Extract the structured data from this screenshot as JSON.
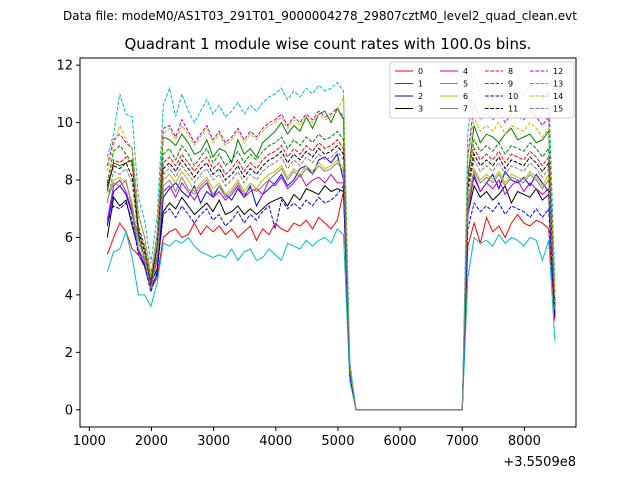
{
  "suptitle": "Data file: modeM0/AS1T03_291T01_9000004278_29807cztM0_level2_quad_clean.evt",
  "chart_data": {
    "type": "line",
    "title": "Quadrant 1 module wise count rates with 100.0s bins.",
    "xlabel": "",
    "ylabel": "",
    "x_offset_label": "+3.5509e8",
    "xlim": [
      850,
      8830
    ],
    "ylim": [
      -0.6,
      12.25
    ],
    "grid": false,
    "legend": {
      "placement": "top-right",
      "columns": 4
    },
    "x_ticks": [
      1000,
      2000,
      3000,
      4000,
      5000,
      6000,
      7000,
      8000
    ],
    "x_tick_labels": [
      "1000",
      "2000",
      "3000",
      "4000",
      "5000",
      "6000",
      "7000",
      "8000"
    ],
    "y_ticks": [
      0,
      2,
      4,
      6,
      8,
      10,
      12
    ],
    "y_tick_labels": [
      "0",
      "2",
      "4",
      "6",
      "8",
      "10",
      "12"
    ],
    "x": [
      1290,
      1390,
      1490,
      1590,
      1690,
      1790,
      1890,
      1990,
      2090,
      2190,
      2290,
      2390,
      2490,
      2590,
      2690,
      2790,
      2890,
      2990,
      3090,
      3190,
      3290,
      3390,
      3490,
      3590,
      3690,
      3790,
      3890,
      3990,
      4090,
      4190,
      4290,
      4390,
      4490,
      4590,
      4690,
      4790,
      4890,
      4990,
      5090,
      5190,
      5290,
      7000,
      7090,
      7190,
      7290,
      7390,
      7490,
      7590,
      7690,
      7790,
      7890,
      7990,
      8090,
      8190,
      8290,
      8390,
      8490
    ],
    "series": [
      {
        "name": "0",
        "color": "#ff0000",
        "dash": "solid",
        "values": [
          5.4,
          6.0,
          6.5,
          6.2,
          5.6,
          5.4,
          5.0,
          4.2,
          4.6,
          6.0,
          6.2,
          6.3,
          6.0,
          6.1,
          6.5,
          6.1,
          6.4,
          6.2,
          6.4,
          6.1,
          6.3,
          6.0,
          6.2,
          6.4,
          5.9,
          6.3,
          6.1,
          6.5,
          6.3,
          6.2,
          6.5,
          6.4,
          6.6,
          6.3,
          6.7,
          6.5,
          6.3,
          6.6,
          7.6,
          1.2,
          0,
          0,
          5.7,
          6.5,
          5.8,
          6.7,
          6.2,
          6.4,
          6.0,
          6.5,
          6.8,
          6.5,
          6.4,
          6.6,
          6.5,
          6.3,
          3.1
        ]
      },
      {
        "name": "1",
        "color": "#008000",
        "dash": "solid",
        "values": [
          7.6,
          8.6,
          8.5,
          8.6,
          8.7,
          6.0,
          5.3,
          4.5,
          5.7,
          9.5,
          9.4,
          9.2,
          9.6,
          9.3,
          8.9,
          9.0,
          9.4,
          8.8,
          9.1,
          9.0,
          8.6,
          9.4,
          8.9,
          9.1,
          8.8,
          9.3,
          9.5,
          9.7,
          10.0,
          9.6,
          9.9,
          9.7,
          10.2,
          9.8,
          10.3,
          10.4,
          10.0,
          10.5,
          10.1,
          1.4,
          0,
          0,
          8.1,
          9.9,
          9.3,
          9.6,
          9.5,
          9.3,
          9.6,
          9.8,
          9.4,
          9.5,
          9.6,
          9.3,
          9.4,
          9.7,
          3.6
        ]
      },
      {
        "name": "2",
        "color": "#0000ff",
        "dash": "solid",
        "values": [
          6.4,
          7.6,
          7.8,
          7.5,
          6.8,
          6.1,
          5.2,
          4.3,
          4.7,
          7.4,
          7.7,
          7.9,
          7.6,
          7.4,
          7.8,
          7.2,
          7.6,
          7.4,
          7.8,
          7.5,
          7.3,
          7.7,
          7.4,
          7.8,
          7.1,
          7.5,
          7.7,
          7.9,
          8.2,
          7.8,
          8.0,
          8.4,
          8.5,
          8.2,
          8.7,
          8.8,
          8.6,
          8.9,
          8.0,
          1.3,
          0,
          0,
          7.2,
          8.1,
          7.6,
          7.9,
          8.2,
          7.7,
          8.3,
          8.0,
          7.9,
          8.1,
          7.8,
          8.2,
          7.9,
          7.6,
          3.4
        ]
      },
      {
        "name": "3",
        "color": "#000000",
        "dash": "solid",
        "values": [
          6.0,
          7.4,
          7.1,
          7.3,
          6.4,
          5.6,
          5.0,
          4.4,
          4.9,
          6.9,
          7.2,
          7.0,
          7.4,
          7.1,
          6.8,
          7.0,
          7.2,
          6.9,
          7.3,
          6.8,
          6.9,
          7.1,
          6.8,
          7.0,
          6.8,
          7.0,
          7.2,
          7.3,
          7.4,
          7.1,
          7.5,
          7.3,
          7.7,
          7.6,
          7.5,
          7.8,
          7.6,
          7.7,
          7.6,
          1.3,
          0,
          0,
          6.8,
          7.8,
          7.4,
          7.6,
          7.3,
          7.5,
          7.8,
          7.2,
          7.6,
          7.5,
          7.4,
          7.7,
          7.3,
          7.5,
          3.3
        ]
      },
      {
        "name": "4",
        "color": "#bf00bf",
        "dash": "solid",
        "values": [
          6.6,
          7.8,
          8.0,
          7.6,
          6.9,
          5.5,
          5.1,
          4.3,
          5.3,
          7.6,
          7.8,
          7.4,
          7.9,
          7.6,
          7.3,
          7.7,
          7.9,
          7.4,
          7.6,
          7.3,
          7.5,
          7.8,
          7.4,
          7.6,
          7.7,
          7.5,
          8.0,
          7.8,
          8.1,
          7.7,
          7.9,
          8.2,
          7.8,
          8.0,
          8.1,
          7.9,
          8.2,
          7.9,
          7.9,
          1.3,
          0,
          0,
          6.8,
          8.2,
          7.6,
          7.9,
          7.7,
          8.0,
          7.5,
          7.8,
          8.0,
          7.6,
          7.9,
          7.7,
          7.5,
          7.7,
          3.4
        ]
      },
      {
        "name": "5",
        "color": "#00bfbf",
        "dash": "solid",
        "values": [
          4.8,
          5.5,
          5.6,
          6.2,
          5.3,
          4.0,
          4.0,
          3.6,
          4.4,
          5.8,
          5.7,
          5.9,
          5.8,
          6.0,
          5.7,
          5.5,
          5.4,
          5.3,
          5.4,
          5.3,
          5.6,
          5.2,
          5.5,
          5.6,
          5.2,
          5.3,
          5.6,
          5.4,
          5.2,
          5.8,
          5.7,
          5.6,
          5.9,
          5.7,
          5.9,
          6.0,
          5.8,
          6.3,
          6.1,
          1.0,
          0,
          0,
          4.6,
          6.0,
          5.8,
          5.9,
          5.7,
          6.1,
          5.8,
          6.0,
          5.9,
          5.7,
          6.0,
          5.9,
          5.2,
          5.9,
          2.4
        ]
      },
      {
        "name": "6",
        "color": "#bfbf00",
        "dash": "solid",
        "values": [
          7.5,
          8.0,
          8.1,
          7.9,
          7.2,
          5.8,
          5.3,
          4.4,
          5.5,
          8.0,
          8.2,
          7.9,
          8.3,
          8.0,
          7.6,
          7.9,
          8.1,
          7.7,
          7.9,
          7.5,
          7.7,
          8.0,
          7.6,
          7.9,
          7.7,
          8.0,
          8.2,
          8.3,
          8.5,
          8.1,
          8.4,
          8.2,
          8.5,
          8.3,
          8.6,
          8.4,
          8.5,
          8.7,
          8.4,
          1.4,
          0,
          0,
          7.3,
          8.4,
          8.0,
          8.2,
          8.0,
          8.3,
          7.9,
          8.2,
          8.1,
          8.0,
          8.3,
          8.1,
          7.8,
          8.2,
          3.5
        ]
      },
      {
        "name": "7",
        "color": "#808080",
        "dash": "solid",
        "values": [
          7.3,
          7.9,
          7.8,
          8.0,
          7.0,
          5.6,
          5.2,
          4.2,
          5.2,
          7.8,
          8.0,
          7.6,
          8.1,
          7.7,
          7.5,
          7.8,
          8.0,
          7.5,
          7.8,
          7.4,
          7.6,
          7.9,
          7.5,
          7.7,
          7.6,
          7.8,
          8.0,
          8.2,
          8.4,
          8.0,
          8.3,
          8.1,
          8.4,
          8.2,
          8.5,
          8.3,
          8.4,
          8.6,
          8.3,
          1.3,
          0,
          0,
          7.1,
          8.3,
          7.9,
          8.1,
          7.9,
          8.2,
          7.8,
          8.1,
          8.0,
          7.9,
          8.2,
          8.0,
          7.7,
          8.0,
          3.4
        ]
      },
      {
        "name": "8",
        "color": "#ff0000",
        "dash": "dashed",
        "values": [
          7.7,
          8.7,
          8.6,
          8.8,
          8.5,
          6.3,
          5.6,
          4.4,
          5.7,
          8.6,
          8.8,
          8.5,
          8.9,
          8.6,
          8.3,
          8.6,
          8.8,
          8.4,
          8.6,
          8.2,
          8.4,
          8.7,
          8.3,
          8.6,
          8.4,
          8.7,
          8.9,
          9.0,
          9.2,
          8.8,
          9.1,
          8.9,
          9.2,
          9.0,
          9.3,
          9.1,
          9.2,
          9.4,
          9.1,
          1.4,
          0,
          0,
          7.9,
          9.1,
          8.7,
          8.9,
          8.7,
          9.0,
          8.6,
          8.9,
          8.8,
          8.7,
          9.0,
          8.8,
          8.5,
          8.8,
          3.7
        ]
      },
      {
        "name": "9",
        "color": "#008000",
        "dash": "dashed",
        "values": [
          7.9,
          9.0,
          9.2,
          8.9,
          8.6,
          6.4,
          5.7,
          4.5,
          5.8,
          8.9,
          9.1,
          8.7,
          9.2,
          8.9,
          8.5,
          8.8,
          9.1,
          8.6,
          8.9,
          8.5,
          8.7,
          9.0,
          8.6,
          8.9,
          8.7,
          9.0,
          9.2,
          9.3,
          9.5,
          9.1,
          9.4,
          9.2,
          9.5,
          9.3,
          9.6,
          9.4,
          9.5,
          9.7,
          9.4,
          1.5,
          0,
          0,
          8.1,
          9.4,
          9.0,
          9.2,
          9.0,
          9.3,
          8.9,
          9.2,
          9.1,
          9.0,
          9.3,
          9.1,
          8.8,
          9.1,
          3.8
        ]
      },
      {
        "name": "10",
        "color": "#0000ff",
        "dash": "dashed",
        "values": [
          6.5,
          7.1,
          7.0,
          7.2,
          6.6,
          5.4,
          5.0,
          4.1,
          4.8,
          6.8,
          7.0,
          6.7,
          7.1,
          6.8,
          6.5,
          6.8,
          7.0,
          6.6,
          6.8,
          6.4,
          6.6,
          6.9,
          6.5,
          6.8,
          6.6,
          6.9,
          7.1,
          6.3,
          7.3,
          7.0,
          7.2,
          7.0,
          7.3,
          7.1,
          7.4,
          7.2,
          7.3,
          7.5,
          7.8,
          1.2,
          0,
          0,
          6.3,
          7.2,
          6.9,
          7.1,
          6.9,
          7.2,
          6.8,
          7.1,
          7.0,
          6.9,
          6.7,
          7.0,
          6.7,
          7.0,
          3.2
        ]
      },
      {
        "name": "11",
        "color": "#000000",
        "dash": "dashed",
        "values": [
          7.8,
          8.5,
          8.4,
          8.6,
          8.1,
          6.2,
          5.5,
          4.3,
          5.6,
          8.4,
          8.6,
          8.3,
          8.7,
          8.4,
          8.1,
          8.4,
          8.6,
          8.2,
          8.4,
          8.0,
          8.2,
          8.5,
          8.1,
          8.4,
          8.2,
          8.5,
          8.7,
          8.8,
          9.0,
          8.6,
          8.9,
          8.7,
          9.0,
          8.8,
          9.1,
          8.9,
          9.0,
          9.2,
          8.9,
          1.4,
          0,
          0,
          7.7,
          8.9,
          8.5,
          8.7,
          8.5,
          8.8,
          8.4,
          8.7,
          8.6,
          8.5,
          8.8,
          8.6,
          8.3,
          8.6,
          3.6
        ]
      },
      {
        "name": "12",
        "color": "#bf00bf",
        "dash": "dashed",
        "values": [
          8.5,
          9.4,
          9.6,
          9.3,
          9.1,
          6.8,
          6.0,
          4.7,
          6.1,
          9.8,
          9.9,
          9.5,
          10.1,
          9.7,
          9.3,
          9.6,
          9.9,
          9.4,
          9.7,
          9.3,
          9.5,
          9.8,
          9.4,
          9.7,
          9.5,
          9.8,
          10.0,
          10.1,
          10.3,
          9.9,
          10.2,
          10.0,
          10.3,
          10.1,
          10.4,
          10.2,
          10.3,
          10.5,
          10.2,
          1.6,
          0,
          0,
          8.8,
          10.7,
          10.1,
          10.3,
          10.1,
          10.4,
          10.0,
          10.3,
          10.2,
          10.1,
          10.4,
          10.2,
          9.9,
          10.2,
          4.1
        ]
      },
      {
        "name": "13",
        "color": "#00bfbf",
        "dash": "dashed",
        "values": [
          8.8,
          9.6,
          11.0,
          10.3,
          10.2,
          7.4,
          6.6,
          5.1,
          6.7,
          10.6,
          11.2,
          10.2,
          11.0,
          10.4,
          10.0,
          10.4,
          10.8,
          10.3,
          10.6,
          10.2,
          10.4,
          10.7,
          10.3,
          10.6,
          10.4,
          10.7,
          10.9,
          11.0,
          11.2,
          10.8,
          11.1,
          10.9,
          11.2,
          11.0,
          11.3,
          11.1,
          11.2,
          11.4,
          11.1,
          1.7,
          0,
          0,
          9.6,
          11.7,
          11.0,
          11.2,
          11.0,
          11.3,
          10.9,
          11.2,
          11.1,
          11.0,
          11.3,
          11.1,
          10.8,
          11.1,
          4.4
        ]
      },
      {
        "name": "14",
        "color": "#bfbf00",
        "dash": "dashed",
        "values": [
          8.3,
          9.2,
          9.9,
          9.4,
          9.1,
          6.8,
          6.0,
          4.7,
          6.1,
          9.6,
          9.8,
          9.4,
          9.9,
          9.6,
          9.2,
          9.5,
          9.8,
          9.3,
          9.6,
          9.2,
          9.4,
          9.7,
          9.3,
          9.6,
          9.4,
          9.7,
          9.9,
          10.0,
          10.2,
          9.8,
          10.1,
          9.9,
          10.2,
          10.0,
          10.3,
          10.1,
          10.2,
          10.4,
          10.9,
          1.6,
          0,
          0,
          8.7,
          10.2,
          9.7,
          9.9,
          9.7,
          10.0,
          9.6,
          9.9,
          9.8,
          9.7,
          10.0,
          9.8,
          9.5,
          9.8,
          4.0
        ]
      },
      {
        "name": "15",
        "color": "#808080",
        "dash": "dashed",
        "values": [
          7.2,
          8.3,
          8.2,
          8.4,
          7.9,
          6.0,
          5.4,
          4.2,
          5.5,
          8.2,
          8.4,
          8.1,
          8.5,
          8.2,
          7.9,
          8.2,
          8.4,
          8.0,
          8.2,
          7.8,
          8.0,
          8.3,
          7.9,
          8.2,
          8.0,
          8.3,
          8.5,
          8.6,
          8.8,
          8.4,
          8.7,
          8.5,
          8.8,
          8.6,
          8.9,
          8.7,
          8.8,
          9.0,
          8.7,
          1.4,
          0,
          0,
          7.5,
          8.7,
          8.3,
          8.5,
          8.3,
          8.6,
          8.2,
          8.5,
          8.4,
          8.3,
          8.6,
          8.4,
          8.1,
          8.4,
          3.5
        ]
      }
    ]
  }
}
